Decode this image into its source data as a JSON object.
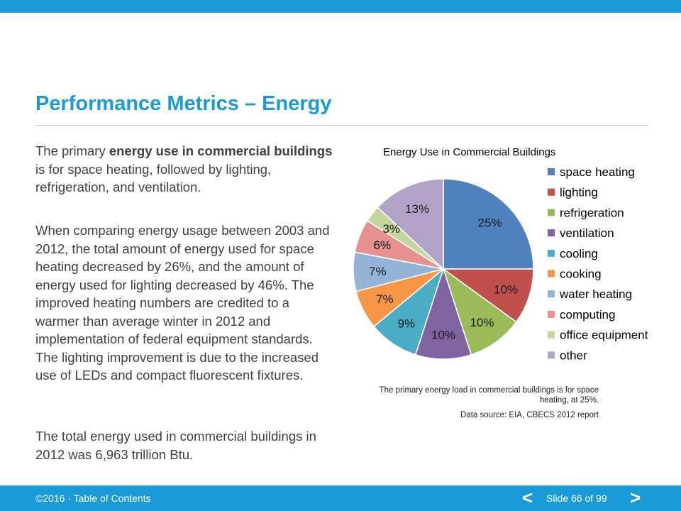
{
  "slide": {
    "title": "Performance Metrics – Energy",
    "paragraph1": {
      "pre": "The primary ",
      "bold": "energy use in commercial buildings",
      "post": " is for space heating, followed by lighting, refrigeration, and ventilation."
    },
    "paragraph2": "When comparing energy usage between 2003 and 2012, the total amount of energy used for space heating decreased by 26%, and the amount of energy used for lighting decreased by 46%. The improved heating numbers are credited to a warmer than average winter in 2012 and implementation of federal equipment standards. The lighting improvement is due to the increased use of LEDs and compact fluorescent fixtures.",
    "paragraph3": "The total energy used in commercial buildings in 2012 was 6,963 trillion Btu.",
    "chart_note": "The primary energy load in commercial buildings is for space heating, at 25%.",
    "data_source": "Data source: EIA, CBECS 2012 report"
  },
  "footer": {
    "copyright": "©2016 · ",
    "toc_link": "Table of Contents",
    "prev_icon": "<",
    "slide_counter": "Slide 66 of 99",
    "next_icon": ">"
  },
  "chart_data": {
    "type": "pie",
    "title": "Energy Use in Commercial Buildings",
    "legend_position": "right",
    "categories": [
      "space heating",
      "lighting",
      "refrigeration",
      "ventilation",
      "cooling",
      "cooking",
      "water heating",
      "computing",
      "office equipment",
      "other"
    ],
    "values": [
      25,
      10,
      10,
      10,
      9,
      7,
      7,
      6,
      3,
      13
    ],
    "data_labels": [
      "25%",
      "10%",
      "10%",
      "10%",
      "9%",
      "7%",
      "7%",
      "6%",
      "3%",
      "13%"
    ],
    "colors": [
      "#4f81bd",
      "#c0504d",
      "#9bbb59",
      "#8064a2",
      "#4bacc6",
      "#f79646",
      "#95b3d7",
      "#e6908f",
      "#c3d69b",
      "#b3a2c7"
    ]
  }
}
